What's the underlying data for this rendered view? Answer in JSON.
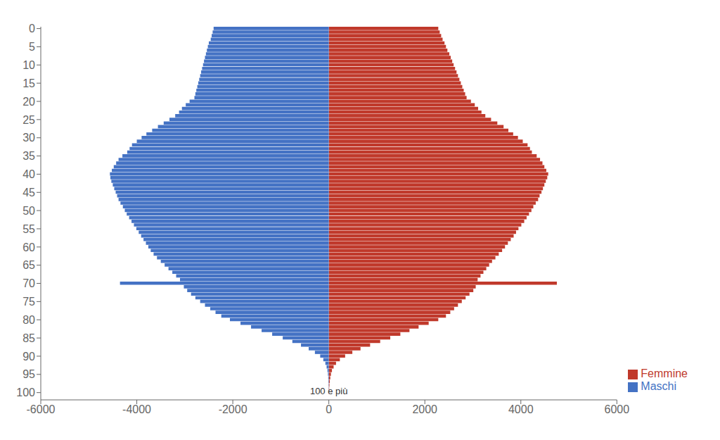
{
  "chart_data": {
    "type": "bar",
    "orientation": "horizontal",
    "categories": [
      0,
      1,
      2,
      3,
      4,
      5,
      6,
      7,
      8,
      9,
      10,
      11,
      12,
      13,
      14,
      15,
      16,
      17,
      18,
      19,
      20,
      21,
      22,
      23,
      24,
      25,
      26,
      27,
      28,
      29,
      30,
      31,
      32,
      33,
      34,
      35,
      36,
      37,
      38,
      39,
      40,
      41,
      42,
      43,
      44,
      45,
      46,
      47,
      48,
      49,
      50,
      51,
      52,
      53,
      54,
      55,
      56,
      57,
      58,
      59,
      60,
      61,
      62,
      63,
      64,
      65,
      66,
      67,
      68,
      69,
      70,
      71,
      72,
      73,
      74,
      75,
      76,
      77,
      78,
      79,
      80,
      81,
      82,
      83,
      84,
      85,
      86,
      87,
      88,
      89,
      90,
      91,
      92,
      93,
      94,
      95,
      96,
      97,
      98,
      99,
      100
    ],
    "series": [
      {
        "name": "Maschi",
        "color": "#4472C4",
        "values": [
          -2400,
          -2420,
          -2440,
          -2460,
          -2500,
          -2520,
          -2540,
          -2560,
          -2580,
          -2600,
          -2620,
          -2640,
          -2660,
          -2680,
          -2700,
          -2720,
          -2740,
          -2760,
          -2780,
          -2800,
          -2900,
          -2980,
          -3060,
          -3120,
          -3200,
          -3320,
          -3440,
          -3560,
          -3680,
          -3800,
          -3900,
          -4000,
          -4100,
          -4150,
          -4200,
          -4300,
          -4380,
          -4430,
          -4480,
          -4520,
          -4560,
          -4550,
          -4530,
          -4500,
          -4470,
          -4440,
          -4410,
          -4380,
          -4340,
          -4290,
          -4250,
          -4210,
          -4160,
          -4110,
          -4060,
          -4010,
          -3960,
          -3910,
          -3860,
          -3810,
          -3760,
          -3710,
          -3650,
          -3580,
          -3500,
          -3420,
          -3340,
          -3260,
          -3180,
          -3100,
          -4350,
          -3020,
          -2950,
          -2870,
          -2780,
          -2680,
          -2580,
          -2470,
          -2360,
          -2240,
          -2060,
          -1840,
          -1620,
          -1400,
          -1180,
          -960,
          -760,
          -580,
          -420,
          -290,
          -180,
          -115,
          -72,
          -46,
          -28,
          -18,
          -12,
          -8,
          -5,
          -3,
          -2
        ]
      },
      {
        "name": "Femmine",
        "color": "#C0392B",
        "values": [
          2280,
          2310,
          2340,
          2370,
          2410,
          2440,
          2470,
          2510,
          2540,
          2570,
          2600,
          2630,
          2660,
          2690,
          2720,
          2750,
          2780,
          2810,
          2840,
          2870,
          2960,
          3040,
          3110,
          3180,
          3260,
          3380,
          3510,
          3640,
          3740,
          3840,
          3940,
          4040,
          4140,
          4190,
          4230,
          4330,
          4400,
          4450,
          4490,
          4530,
          4570,
          4550,
          4520,
          4490,
          4460,
          4430,
          4390,
          4360,
          4310,
          4260,
          4220,
          4170,
          4120,
          4070,
          4010,
          3950,
          3900,
          3850,
          3790,
          3730,
          3670,
          3610,
          3540,
          3470,
          3400,
          3340,
          3280,
          3220,
          3160,
          3100,
          4750,
          3060,
          3010,
          2930,
          2850,
          2770,
          2690,
          2610,
          2530,
          2440,
          2280,
          2080,
          1870,
          1680,
          1490,
          1280,
          1070,
          860,
          660,
          490,
          340,
          230,
          150,
          100,
          65,
          44,
          30,
          20,
          13,
          8,
          5
        ]
      }
    ],
    "xlim": [
      -6000,
      6000
    ],
    "xticks": [
      -6000,
      -4000,
      -2000,
      0,
      2000,
      4000,
      6000
    ],
    "ylim": [
      -0.5,
      102
    ],
    "yticks": [
      0,
      5,
      10,
      15,
      20,
      25,
      30,
      35,
      40,
      45,
      50,
      55,
      60,
      65,
      70,
      75,
      80,
      85,
      90,
      95,
      100
    ],
    "annotations": [
      {
        "text": "100 e più",
        "x": 0,
        "y": 101.5
      }
    ],
    "legend": "lower right",
    "grid": false
  }
}
